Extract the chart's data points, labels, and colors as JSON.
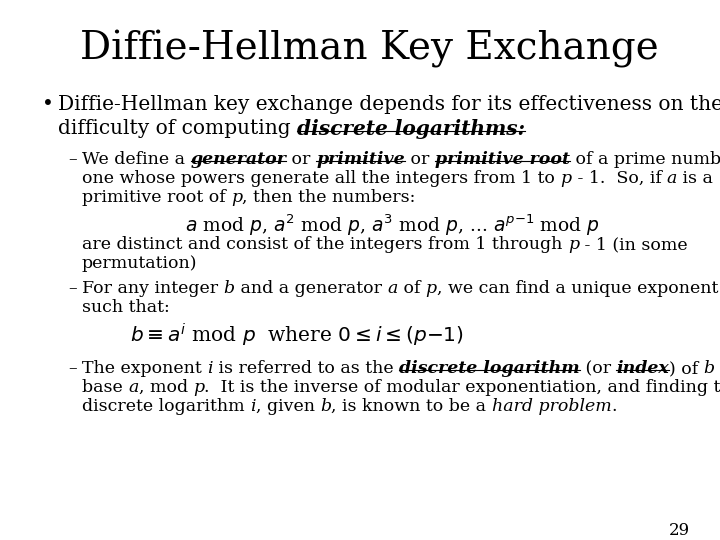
{
  "background_color": "#ffffff",
  "title": "Diffie-Hellman Key Exchange",
  "title_fontsize": 28,
  "serif": "DejaVu Serif",
  "page_number": "29",
  "fig_width": 7.2,
  "fig_height": 5.4,
  "dpi": 100
}
